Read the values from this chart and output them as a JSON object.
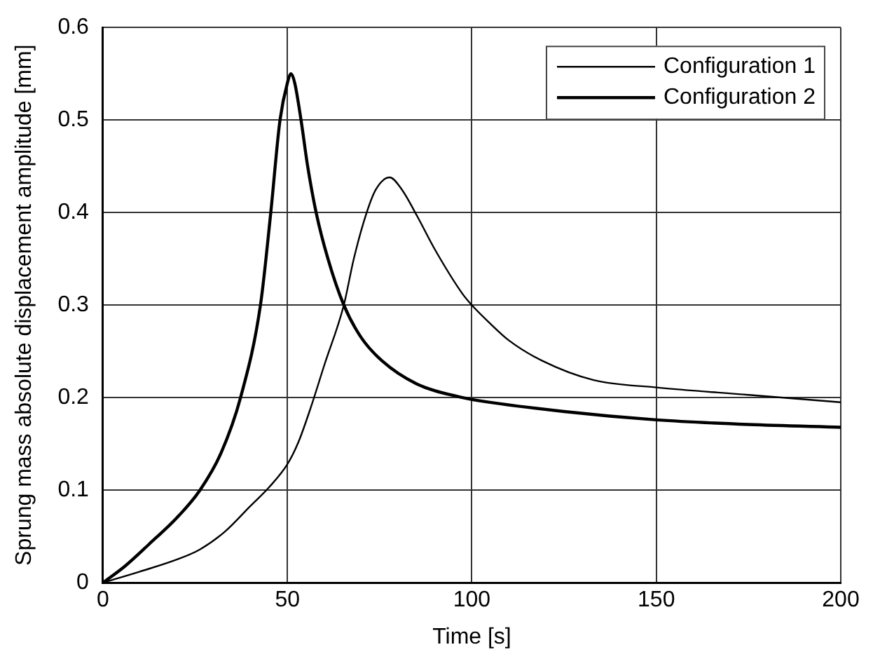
{
  "chart_data": {
    "type": "line",
    "xlabel": "Time [s]",
    "ylabel": "Sprung mass absolute displacement amplitude [mm]",
    "xlim": [
      0,
      200
    ],
    "xticks": [
      0,
      50,
      100,
      150,
      200
    ],
    "ylim": [
      0,
      0.6
    ],
    "yticks": [
      0,
      0.1,
      0.2,
      0.3,
      0.4,
      0.5,
      0.6
    ],
    "grid": true,
    "legend": "top right",
    "marker": "none",
    "series": [
      {
        "name": "Configuration 1",
        "color": "#000000",
        "x": [
          0,
          10,
          20,
          26.3,
          33,
          40,
          45,
          50,
          53,
          56.4,
          60,
          65.3,
          68,
          71.5,
          74,
          77.7,
          81,
          85.2,
          90,
          97.5,
          100,
          105,
          110,
          119,
          133,
          150,
          175,
          200
        ],
        "values": [
          0,
          0.012,
          0.025,
          0.036,
          0.055,
          0.083,
          0.103,
          0.128,
          0.152,
          0.19,
          0.235,
          0.3,
          0.35,
          0.4,
          0.425,
          0.438,
          0.425,
          0.396,
          0.36,
          0.312,
          0.3,
          0.28,
          0.262,
          0.24,
          0.219,
          0.211,
          0.203,
          0.195
        ]
      },
      {
        "name": "Configuration 2",
        "color": "#000000",
        "x": [
          0,
          6,
          12.6,
          20,
          26.3,
          32,
          37.3,
          42.7,
          45.5,
          48,
          50,
          51,
          52,
          53.7,
          55.5,
          57.8,
          61,
          65.3,
          70,
          75.6,
          85,
          97.5,
          100,
          125,
          150,
          175,
          200
        ],
        "values": [
          0,
          0.018,
          0.042,
          0.07,
          0.1,
          0.14,
          0.2,
          0.3,
          0.4,
          0.5,
          0.54,
          0.55,
          0.54,
          0.5,
          0.45,
          0.4,
          0.35,
          0.3,
          0.265,
          0.24,
          0.215,
          0.2,
          0.198,
          0.185,
          0.176,
          0.171,
          0.168
        ]
      }
    ]
  }
}
